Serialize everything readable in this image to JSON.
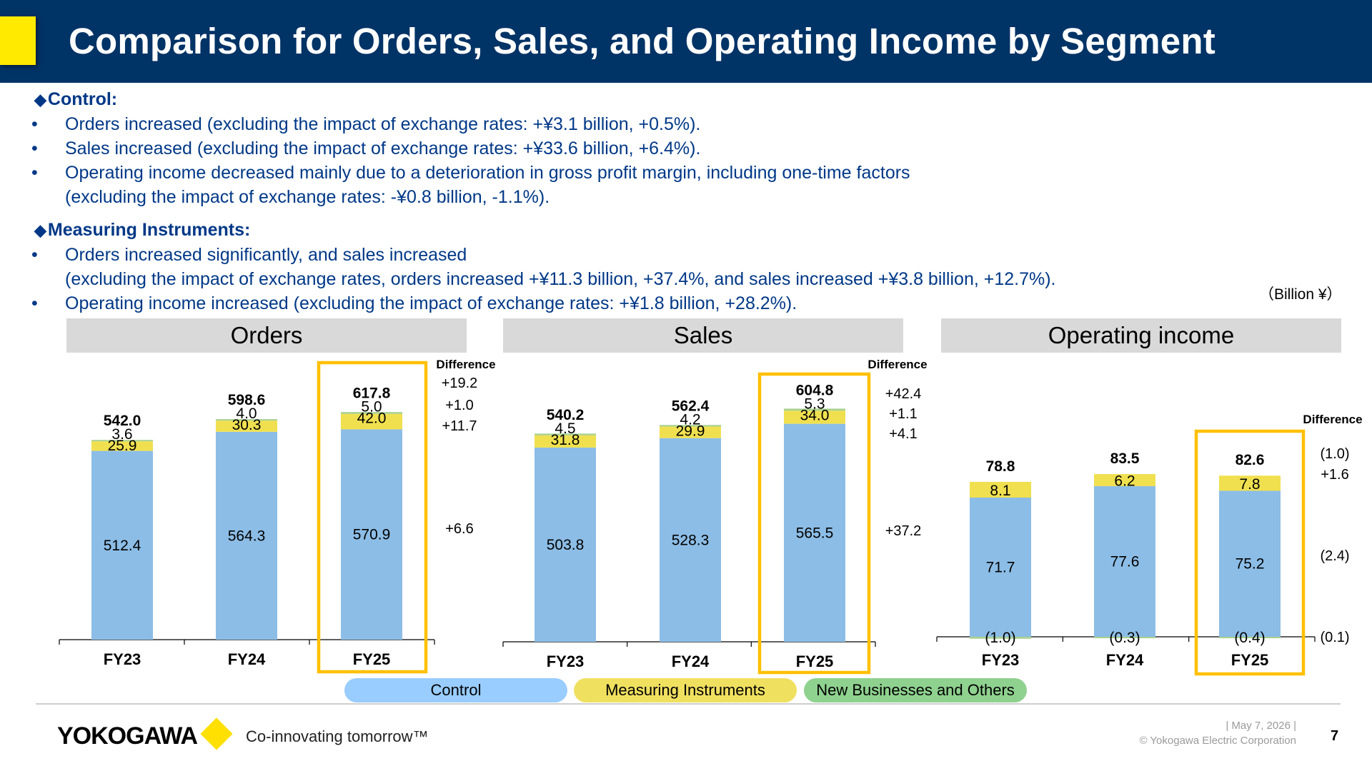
{
  "header": {
    "title": "Comparison for Orders, Sales, and Operating Income by Segment"
  },
  "control_section": {
    "heading": "Control:",
    "bullets": [
      "Orders increased (excluding the impact of exchange rates: +¥3.1 billion, +0.5%).",
      "Sales increased (excluding the impact of exchange rates: +¥33.6 billion, +6.4%).",
      "Operating income decreased mainly due to a deterioration in gross profit margin, including one-time factors"
    ],
    "continuation": "(excluding the impact of exchange rates: -¥0.8 billion, -1.1%)."
  },
  "measuring_section": {
    "heading": "Measuring Instruments:",
    "bullet1": "Orders increased significantly, and sales increased",
    "continuation": "(excluding the impact of exchange rates, orders increased +¥11.3 billion, +37.4%, and sales increased +¥3.8 billion, +12.7%).",
    "bullet2": "Operating income increased (excluding the impact of exchange rates: +¥1.8 billion, +28.2%)."
  },
  "bullet_char": "•",
  "diamond_char": "◆",
  "unit_label": "（Billion ¥）",
  "difference_label": "Difference",
  "colors": {
    "control": "#8cbde6",
    "measuring": "#f0e050",
    "new_business": "#a9d18e",
    "highlight": "#ffc000",
    "header_bg": "#003366"
  },
  "legend": [
    {
      "label": "Control",
      "color": "#99ccff"
    },
    {
      "label": "Measuring Instruments",
      "color": "#f0e060"
    },
    {
      "label": "New Businesses and Others",
      "color": "#8fd18f"
    }
  ],
  "chart_data": [
    {
      "type": "bar",
      "stacked": true,
      "title": "Orders",
      "categories": [
        "FY23",
        "FY24",
        "FY25"
      ],
      "series": [
        {
          "name": "Control",
          "values": [
            512.4,
            564.3,
            570.9
          ]
        },
        {
          "name": "Measuring Instruments",
          "values": [
            25.9,
            30.3,
            42.0
          ]
        },
        {
          "name": "New Businesses and Others",
          "values": [
            3.6,
            4.0,
            5.0
          ]
        }
      ],
      "totals": [
        542.0,
        598.6,
        617.8
      ],
      "value_labels": {
        "Control": [
          "512.4",
          "564.3",
          "570.9"
        ],
        "Measuring Instruments": [
          "25.9",
          "30.3",
          "42.0"
        ],
        "New Businesses and Others": [
          "3.6",
          "4.0",
          "5.0"
        ],
        "totals": [
          "542.0",
          "598.6",
          "617.8"
        ]
      },
      "difference": {
        "total": "+19.2",
        "New Businesses and Others": "+1.0",
        "Measuring Instruments": "+11.7",
        "Control": "+6.6"
      },
      "highlight": "FY25"
    },
    {
      "type": "bar",
      "stacked": true,
      "title": "Sales",
      "categories": [
        "FY23",
        "FY24",
        "FY25"
      ],
      "series": [
        {
          "name": "Control",
          "values": [
            503.8,
            528.3,
            565.5
          ]
        },
        {
          "name": "Measuring Instruments",
          "values": [
            31.8,
            29.9,
            34.0
          ]
        },
        {
          "name": "New Businesses and Others",
          "values": [
            4.5,
            4.2,
            5.3
          ]
        }
      ],
      "totals": [
        540.2,
        562.4,
        604.8
      ],
      "value_labels": {
        "Control": [
          "503.8",
          "528.3",
          "565.5"
        ],
        "Measuring Instruments": [
          "31.8",
          "29.9",
          "34.0"
        ],
        "New Businesses and Others": [
          "4.5",
          "4.2",
          "5.3"
        ],
        "totals": [
          "540.2",
          "562.4",
          "604.8"
        ]
      },
      "difference": {
        "total": "+42.4",
        "New Businesses and Others": "+1.1",
        "Measuring Instruments": "+4.1",
        "Control": "+37.2"
      },
      "highlight": "FY25"
    },
    {
      "type": "bar",
      "stacked": true,
      "title": "Operating income",
      "categories": [
        "FY23",
        "FY24",
        "FY25"
      ],
      "series": [
        {
          "name": "Control",
          "values": [
            71.7,
            77.6,
            75.2
          ]
        },
        {
          "name": "Measuring Instruments",
          "values": [
            8.1,
            6.2,
            7.8
          ]
        },
        {
          "name": "New Businesses and Others",
          "values": [
            -1.0,
            -0.3,
            -0.4
          ]
        }
      ],
      "totals": [
        78.8,
        83.5,
        82.6
      ],
      "value_labels": {
        "Control": [
          "71.7",
          "77.6",
          "75.2"
        ],
        "Measuring Instruments": [
          "8.1",
          "6.2",
          "7.8"
        ],
        "New Businesses and Others": [
          "(1.0)",
          "(0.3)",
          "(0.4)"
        ],
        "totals": [
          "78.8",
          "83.5",
          "82.6"
        ]
      },
      "difference": {
        "total": "(1.0)",
        "Measuring Instruments": "+1.6",
        "Control": "(2.4)",
        "New Businesses and Others": "(0.1)"
      },
      "highlight": "FY25"
    }
  ],
  "footer": {
    "logo": "YOKOGAWA",
    "tagline": "Co-innovating tomorrow™",
    "date": "| May 7, 2026 |",
    "copyright": "© Yokogawa Electric Corporation",
    "page": "7"
  }
}
